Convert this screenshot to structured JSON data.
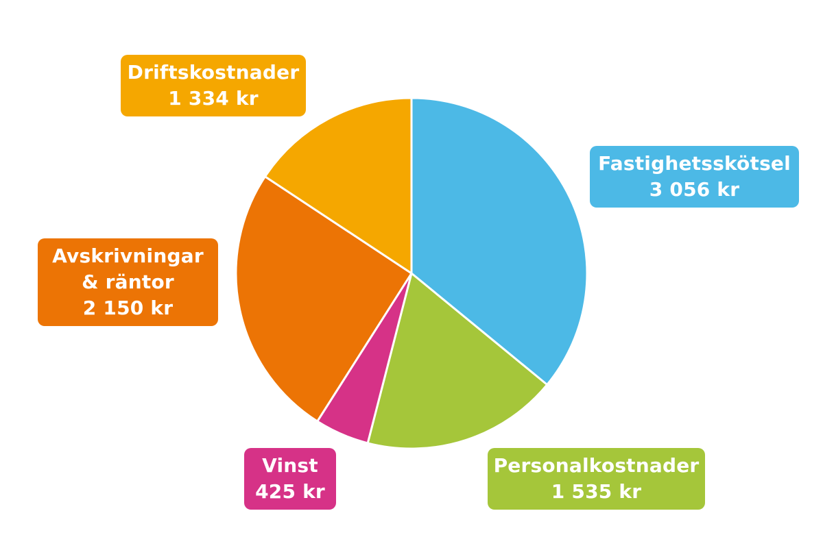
{
  "chart_data": {
    "type": "pie",
    "unit": "kr",
    "slices": [
      {
        "name": "Fastighetsskötsel",
        "value": 3056,
        "value_label": "3 056 kr",
        "color": "#4CB9E6"
      },
      {
        "name": "Personalkostnader",
        "value": 1535,
        "value_label": "1 535 kr",
        "color": "#A5C63A"
      },
      {
        "name": "Vinst",
        "value": 425,
        "value_label": "425 kr",
        "color": "#D63287"
      },
      {
        "name": "Avskrivningar & räntor",
        "name_lines": [
          "Avskrivningar",
          "& räntor"
        ],
        "value": 2150,
        "value_label": "2 150 kr",
        "color": "#EC7405"
      },
      {
        "name": "Driftskostnader",
        "value": 1334,
        "value_label": "1 334 kr",
        "color": "#F5A700"
      }
    ],
    "start_angle": "12 o'clock",
    "direction": "clockwise",
    "legend": "callout boxes around pie"
  }
}
